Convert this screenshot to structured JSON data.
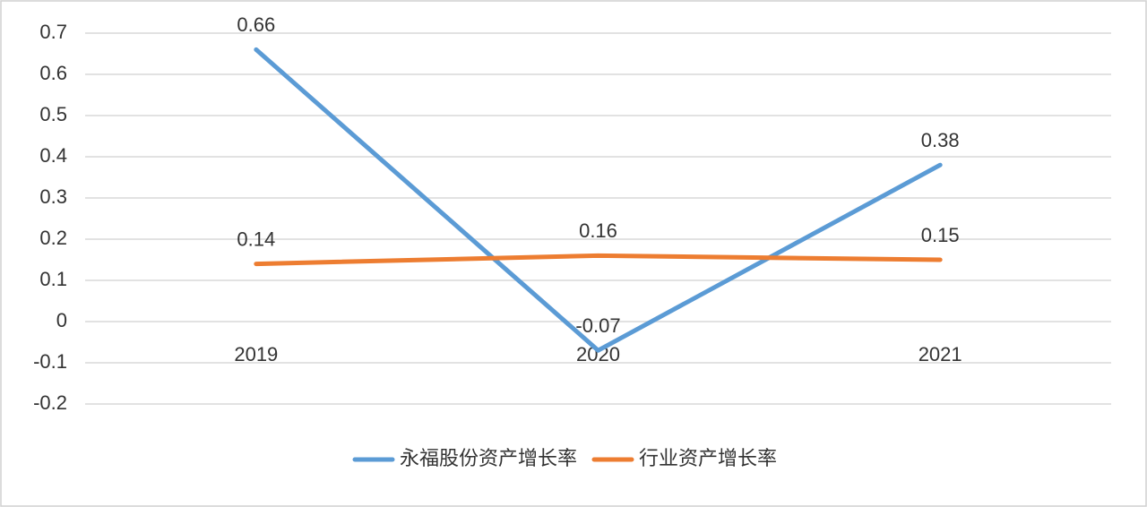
{
  "chart_data": {
    "type": "line",
    "categories": [
      "2019",
      "2020",
      "2021"
    ],
    "series": [
      {
        "name": "永福股份资产增长率",
        "color": "#5b9bd5",
        "values": [
          0.66,
          -0.07,
          0.38
        ]
      },
      {
        "name": "行业资产增长率",
        "color": "#ed7d31",
        "values": [
          0.14,
          0.16,
          0.15
        ]
      }
    ],
    "ylim": [
      -0.2,
      0.7
    ],
    "yticks": [
      -0.2,
      -0.1,
      0,
      0.1,
      0.2,
      0.3,
      0.4,
      0.5,
      0.6,
      0.7
    ],
    "grid": true,
    "legend": "bottom"
  }
}
